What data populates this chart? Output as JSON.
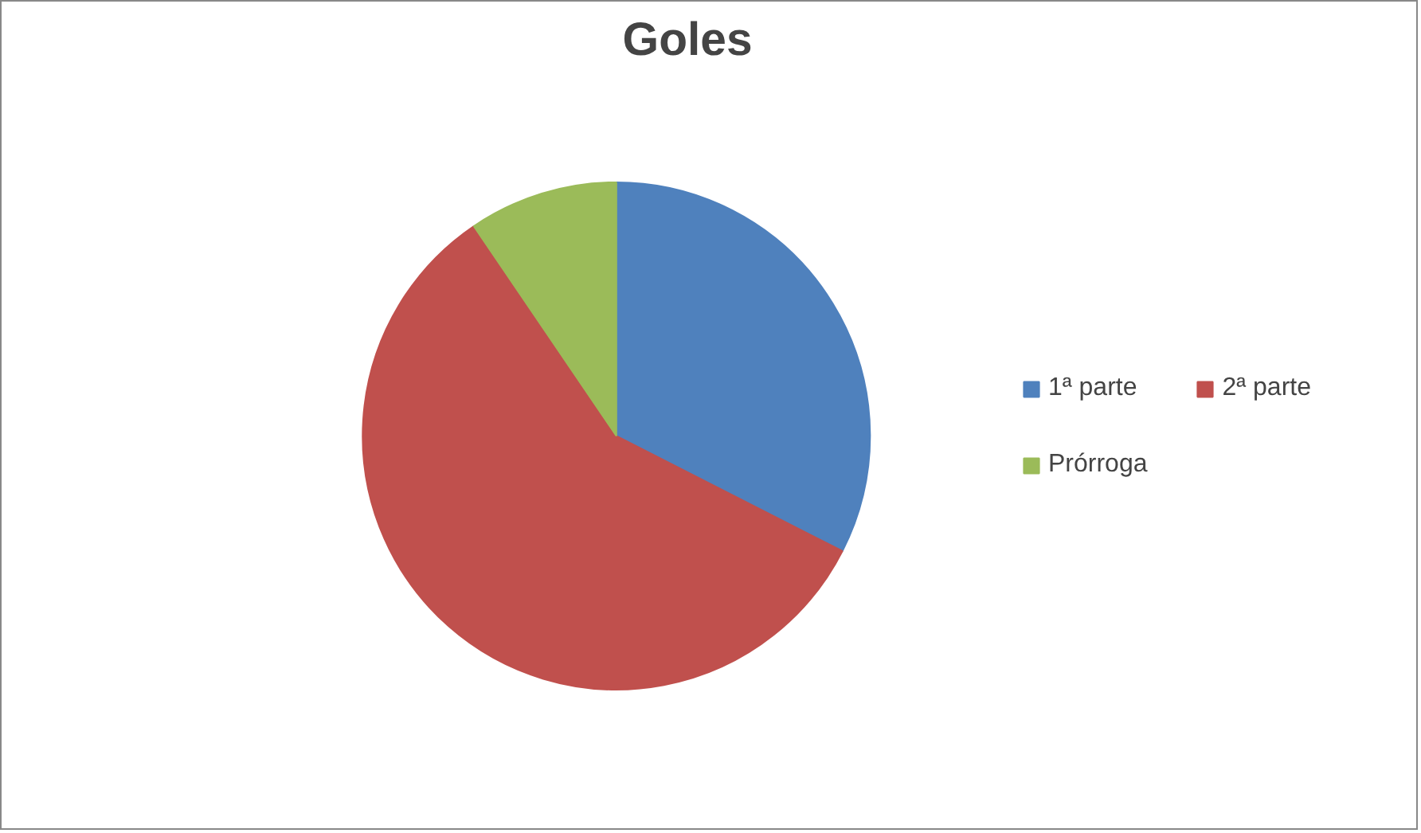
{
  "chart_data": {
    "type": "pie",
    "title": "Goles",
    "categories": [
      "1ª parte",
      "2ª parte",
      "Prórroga"
    ],
    "values": [
      32.5,
      58,
      9.5
    ],
    "colors": [
      "#4f81bd",
      "#c0504d",
      "#9bbb59"
    ],
    "legend": "right"
  }
}
